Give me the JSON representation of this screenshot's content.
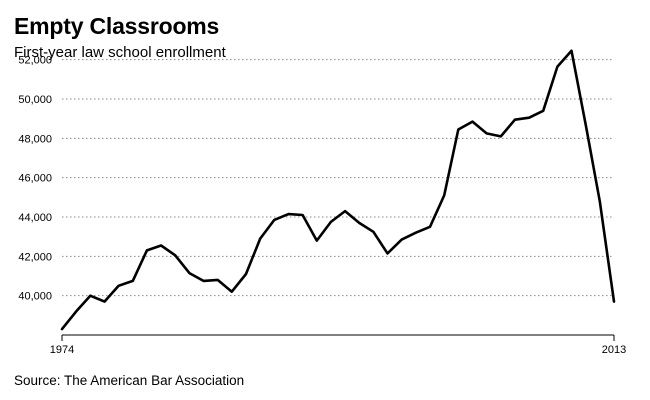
{
  "title": "Empty Classrooms",
  "subtitle": "First-year law school enrollment",
  "source": "Source: The American Bar Association",
  "colors": {
    "line": "#000000",
    "grid": "#888888",
    "background": "#ffffff"
  },
  "chart_data": {
    "type": "line",
    "title": "Empty Classrooms",
    "subtitle": "First-year law school enrollment",
    "xlabel": "",
    "ylabel": "",
    "xlim": [
      1974,
      2013
    ],
    "ylim": [
      38000,
      53000
    ],
    "grid": "horizontal-dotted",
    "legend": "none",
    "x_tick_labels": [
      "1974",
      "2013"
    ],
    "y_tick_labels": [
      "40,000",
      "42,000",
      "44,000",
      "46,000",
      "48,000",
      "50,000",
      "52,000"
    ],
    "y_tick_values": [
      40000,
      42000,
      44000,
      46000,
      48000,
      50000,
      52000
    ],
    "series": [
      {
        "x": [
          1974,
          1975,
          1976,
          1977,
          1978,
          1979,
          1980,
          1981,
          1982,
          1983,
          1984,
          1985,
          1986,
          1987,
          1988,
          1989,
          1990,
          1991,
          1992,
          1993,
          1994,
          1995,
          1996,
          1997,
          1998,
          1999,
          2000,
          2001,
          2002,
          2003,
          2004,
          2005,
          2006,
          2007,
          2008,
          2009,
          2010,
          2011,
          2012,
          2013
        ],
        "y": [
          38300,
          39200,
          40000,
          39700,
          40500,
          40750,
          42300,
          42550,
          42050,
          41150,
          40750,
          40800,
          40200,
          41100,
          42900,
          43850,
          44150,
          44100,
          42800,
          43750,
          44300,
          43700,
          43250,
          42150,
          42850,
          43200,
          43500,
          45100,
          48450,
          48850,
          48250,
          48100,
          48950,
          49050,
          49400,
          51650,
          52450,
          48700,
          44800,
          39700
        ]
      }
    ]
  }
}
